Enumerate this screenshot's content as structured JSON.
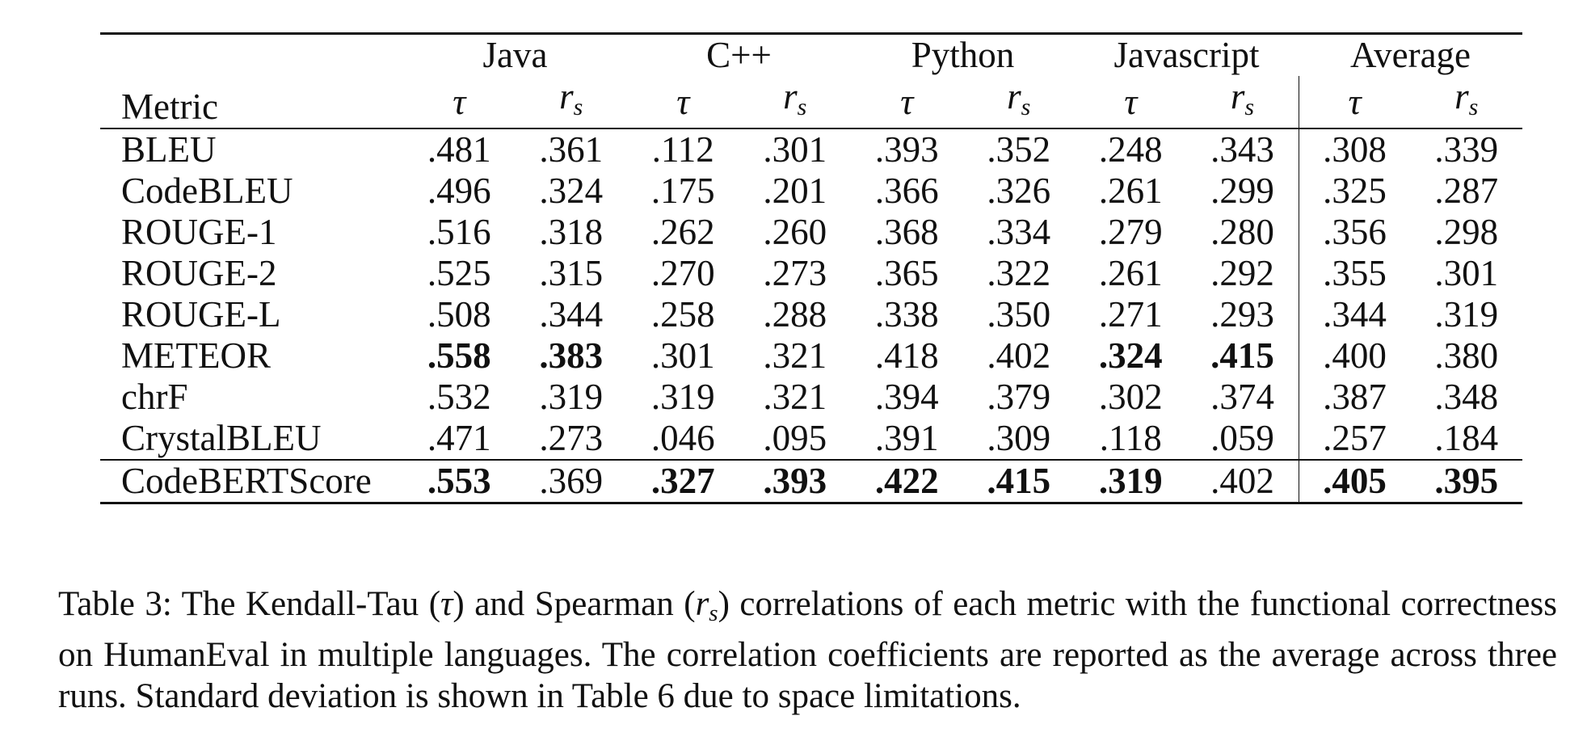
{
  "table": {
    "metric_header": "Metric",
    "languages": [
      "Java",
      "C++",
      "Python",
      "Javascript",
      "Average"
    ],
    "symbols": {
      "tau": "τ",
      "rs_base": "r",
      "rs_sub": "s"
    },
    "rows": [
      {
        "metric": "BLEU",
        "values": [
          ".481",
          ".361",
          ".112",
          ".301",
          ".393",
          ".352",
          ".248",
          ".343",
          ".308",
          ".339"
        ],
        "bold": [
          false,
          false,
          false,
          false,
          false,
          false,
          false,
          false,
          false,
          false
        ]
      },
      {
        "metric": "CodeBLEU",
        "values": [
          ".496",
          ".324",
          ".175",
          ".201",
          ".366",
          ".326",
          ".261",
          ".299",
          ".325",
          ".287"
        ],
        "bold": [
          false,
          false,
          false,
          false,
          false,
          false,
          false,
          false,
          false,
          false
        ]
      },
      {
        "metric": "ROUGE-1",
        "values": [
          ".516",
          ".318",
          ".262",
          ".260",
          ".368",
          ".334",
          ".279",
          ".280",
          ".356",
          ".298"
        ],
        "bold": [
          false,
          false,
          false,
          false,
          false,
          false,
          false,
          false,
          false,
          false
        ]
      },
      {
        "metric": "ROUGE-2",
        "values": [
          ".525",
          ".315",
          ".270",
          ".273",
          ".365",
          ".322",
          ".261",
          ".292",
          ".355",
          ".301"
        ],
        "bold": [
          false,
          false,
          false,
          false,
          false,
          false,
          false,
          false,
          false,
          false
        ]
      },
      {
        "metric": "ROUGE-L",
        "values": [
          ".508",
          ".344",
          ".258",
          ".288",
          ".338",
          ".350",
          ".271",
          ".293",
          ".344",
          ".319"
        ],
        "bold": [
          false,
          false,
          false,
          false,
          false,
          false,
          false,
          false,
          false,
          false
        ]
      },
      {
        "metric": "METEOR",
        "values": [
          ".558",
          ".383",
          ".301",
          ".321",
          ".418",
          ".402",
          ".324",
          ".415",
          ".400",
          ".380"
        ],
        "bold": [
          true,
          true,
          false,
          false,
          false,
          false,
          true,
          true,
          false,
          false
        ]
      },
      {
        "metric": "chrF",
        "values": [
          ".532",
          ".319",
          ".319",
          ".321",
          ".394",
          ".379",
          ".302",
          ".374",
          ".387",
          ".348"
        ],
        "bold": [
          false,
          false,
          false,
          false,
          false,
          false,
          false,
          false,
          false,
          false
        ]
      },
      {
        "metric": "CrystalBLEU",
        "values": [
          ".471",
          ".273",
          ".046",
          ".095",
          ".391",
          ".309",
          ".118",
          ".059",
          ".257",
          ".184"
        ],
        "bold": [
          false,
          false,
          false,
          false,
          false,
          false,
          false,
          false,
          false,
          false
        ]
      }
    ],
    "final_row": {
      "metric": "CodeBERTScore",
      "values": [
        ".553",
        ".369",
        ".327",
        ".393",
        ".422",
        ".415",
        ".319",
        ".402",
        ".405",
        ".395"
      ],
      "bold": [
        true,
        false,
        true,
        true,
        true,
        true,
        true,
        false,
        true,
        true
      ]
    }
  },
  "caption": {
    "label": "Table 3:",
    "part1": "The Kendall-Tau (",
    "tau": "τ",
    "part2": ") and Spearman (",
    "rs_base": "r",
    "rs_sub": "s",
    "part3": ") correlations of each metric with the functional correctness on HumanEval in multiple languages. The correlation coefficients are reported as the average across three runs. Standard deviation is shown in Table 6 due to space limitations."
  }
}
